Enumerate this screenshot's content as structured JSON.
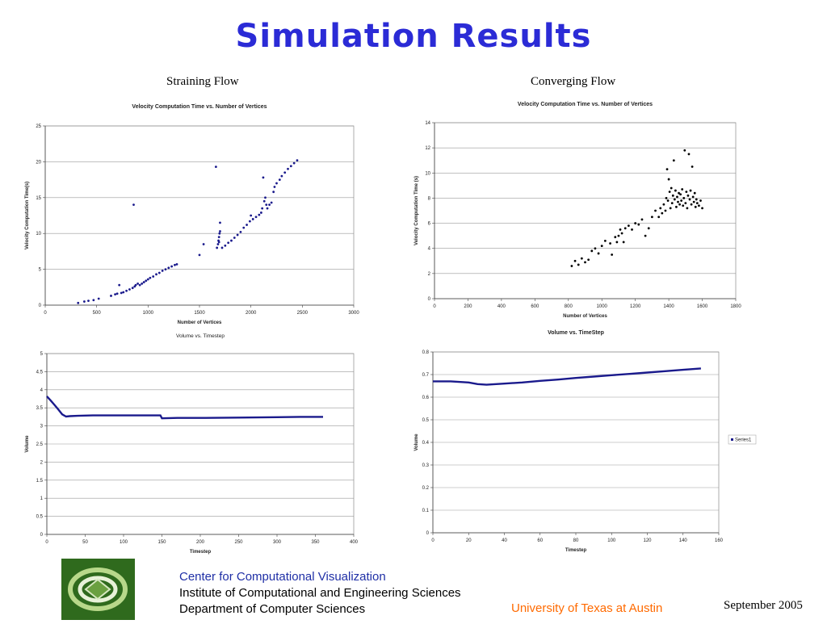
{
  "slide": {
    "title": "Simulation Results",
    "left_column_label": "Straining Flow",
    "right_column_label": "Converging Flow"
  },
  "footer": {
    "line1": "Center for Computational Visualization",
    "line2": "Institute of Computational and Engineering Sciences",
    "line3": "Department of Computer Sciences",
    "university": "University of Texas at Austin",
    "date": "September  2005",
    "colors": {
      "line1": "#1f2fa6",
      "university": "#ff6a00",
      "logo_bg": "#2f6a1d"
    }
  },
  "chart_data": [
    {
      "id": "straining-velocity",
      "type": "scatter",
      "title": "Velocity Computation Time vs. Number of Vertices",
      "xlabel": "Number of Vertices",
      "ylabel": "Velocity Computation Time(s)",
      "xlim": [
        0,
        3000
      ],
      "ylim": [
        0,
        25
      ],
      "xticks": [
        0,
        500,
        1000,
        1500,
        2000,
        2500,
        3000
      ],
      "yticks": [
        0,
        5,
        10,
        15,
        20,
        25
      ],
      "grid": true,
      "color": "#1a1a8c",
      "points": [
        [
          320,
          0.3
        ],
        [
          380,
          0.5
        ],
        [
          420,
          0.6
        ],
        [
          470,
          0.7
        ],
        [
          520,
          0.9
        ],
        [
          640,
          1.3
        ],
        [
          680,
          1.5
        ],
        [
          700,
          1.6
        ],
        [
          720,
          2.8
        ],
        [
          740,
          1.7
        ],
        [
          760,
          1.8
        ],
        [
          790,
          2.0
        ],
        [
          820,
          2.2
        ],
        [
          850,
          2.4
        ],
        [
          870,
          2.6
        ],
        [
          880,
          2.8
        ],
        [
          900,
          3.0
        ],
        [
          920,
          2.8
        ],
        [
          940,
          3.0
        ],
        [
          960,
          3.2
        ],
        [
          980,
          3.4
        ],
        [
          1000,
          3.6
        ],
        [
          1020,
          3.8
        ],
        [
          1050,
          4.0
        ],
        [
          1080,
          4.3
        ],
        [
          1110,
          4.5
        ],
        [
          1140,
          4.8
        ],
        [
          1170,
          5.0
        ],
        [
          1200,
          5.2
        ],
        [
          1230,
          5.4
        ],
        [
          1260,
          5.6
        ],
        [
          1280,
          5.7
        ],
        [
          860,
          14.0
        ],
        [
          1500,
          7.0
        ],
        [
          1540,
          8.5
        ],
        [
          1660,
          19.3
        ],
        [
          1670,
          8.0
        ],
        [
          1680,
          8.5
        ],
        [
          1685,
          9.0
        ],
        [
          1690,
          9.5
        ],
        [
          1695,
          10.0
        ],
        [
          1700,
          11.5
        ],
        [
          1690,
          8.8
        ],
        [
          1700,
          10.3
        ],
        [
          1720,
          8.0
        ],
        [
          1750,
          8.3
        ],
        [
          1780,
          8.7
        ],
        [
          1810,
          9.0
        ],
        [
          1840,
          9.4
        ],
        [
          1870,
          9.8
        ],
        [
          1900,
          10.2
        ],
        [
          1930,
          10.8
        ],
        [
          1960,
          11.2
        ],
        [
          1990,
          11.7
        ],
        [
          2000,
          12.5
        ],
        [
          2020,
          12.0
        ],
        [
          2050,
          12.3
        ],
        [
          2080,
          12.6
        ],
        [
          2100,
          12.9
        ],
        [
          2110,
          13.5
        ],
        [
          2120,
          17.8
        ],
        [
          2130,
          14.5
        ],
        [
          2140,
          15.0
        ],
        [
          2150,
          14.0
        ],
        [
          2160,
          13.5
        ],
        [
          2180,
          14.0
        ],
        [
          2200,
          14.3
        ],
        [
          2220,
          15.8
        ],
        [
          2230,
          16.5
        ],
        [
          2250,
          17.0
        ],
        [
          2280,
          17.5
        ],
        [
          2300,
          18.0
        ],
        [
          2330,
          18.5
        ],
        [
          2360,
          19.0
        ],
        [
          2390,
          19.4
        ],
        [
          2420,
          19.8
        ],
        [
          2450,
          20.2
        ]
      ]
    },
    {
      "id": "converging-velocity",
      "type": "scatter",
      "title": "Velocity Computation Time vs. Number of Vertices",
      "xlabel": "Number of Vertices",
      "ylabel": "Velocity Computation Time (s)",
      "xlim": [
        0,
        1800
      ],
      "ylim": [
        0,
        14
      ],
      "xticks": [
        0,
        200,
        400,
        600,
        800,
        1000,
        1200,
        1400,
        1600,
        1800
      ],
      "yticks": [
        0,
        2,
        4,
        6,
        8,
        10,
        12,
        14
      ],
      "grid": true,
      "color": "#000000",
      "points": [
        [
          820,
          2.6
        ],
        [
          840,
          3.0
        ],
        [
          860,
          2.7
        ],
        [
          880,
          3.2
        ],
        [
          900,
          2.9
        ],
        [
          920,
          3.1
        ],
        [
          940,
          3.8
        ],
        [
          960,
          4.0
        ],
        [
          980,
          3.6
        ],
        [
          1000,
          4.2
        ],
        [
          1020,
          4.6
        ],
        [
          1050,
          4.4
        ],
        [
          1060,
          3.5
        ],
        [
          1080,
          4.9
        ],
        [
          1090,
          4.5
        ],
        [
          1100,
          5.0
        ],
        [
          1110,
          5.5
        ],
        [
          1120,
          5.2
        ],
        [
          1130,
          4.5
        ],
        [
          1140,
          5.6
        ],
        [
          1160,
          5.8
        ],
        [
          1180,
          5.5
        ],
        [
          1200,
          6.0
        ],
        [
          1220,
          5.9
        ],
        [
          1240,
          6.3
        ],
        [
          1260,
          5.0
        ],
        [
          1280,
          5.6
        ],
        [
          1300,
          6.5
        ],
        [
          1320,
          7.0
        ],
        [
          1340,
          6.5
        ],
        [
          1350,
          7.2
        ],
        [
          1360,
          6.8
        ],
        [
          1370,
          7.5
        ],
        [
          1380,
          7.0
        ],
        [
          1385,
          8.0
        ],
        [
          1390,
          10.3
        ],
        [
          1395,
          7.8
        ],
        [
          1400,
          9.5
        ],
        [
          1405,
          8.5
        ],
        [
          1410,
          7.2
        ],
        [
          1415,
          8.8
        ],
        [
          1420,
          7.6
        ],
        [
          1425,
          8.2
        ],
        [
          1430,
          11.0
        ],
        [
          1435,
          7.9
        ],
        [
          1440,
          8.6
        ],
        [
          1445,
          7.3
        ],
        [
          1450,
          8.1
        ],
        [
          1455,
          7.7
        ],
        [
          1460,
          8.4
        ],
        [
          1465,
          7.5
        ],
        [
          1470,
          8.3
        ],
        [
          1475,
          7.8
        ],
        [
          1480,
          8.7
        ],
        [
          1485,
          7.4
        ],
        [
          1490,
          8.0
        ],
        [
          1495,
          11.8
        ],
        [
          1500,
          7.6
        ],
        [
          1505,
          8.5
        ],
        [
          1510,
          7.2
        ],
        [
          1515,
          8.2
        ],
        [
          1520,
          11.5
        ],
        [
          1525,
          7.9
        ],
        [
          1530,
          8.6
        ],
        [
          1535,
          7.5
        ],
        [
          1540,
          10.5
        ],
        [
          1545,
          8.1
        ],
        [
          1550,
          7.7
        ],
        [
          1555,
          8.4
        ],
        [
          1560,
          7.3
        ],
        [
          1565,
          7.9
        ],
        [
          1570,
          7.6
        ],
        [
          1580,
          7.4
        ],
        [
          1590,
          7.8
        ],
        [
          1600,
          7.2
        ]
      ]
    },
    {
      "id": "straining-volume",
      "type": "line",
      "title": "Volume vs. Timestep",
      "xlabel": "Timestep",
      "ylabel": "Volume",
      "xlim": [
        0,
        400
      ],
      "ylim": [
        0,
        5
      ],
      "xticks": [
        0,
        50,
        100,
        150,
        200,
        250,
        300,
        350,
        400
      ],
      "yticks": [
        0,
        0.5,
        1,
        1.5,
        2,
        2.5,
        3,
        3.5,
        4,
        4.5,
        5
      ],
      "grid": true,
      "color": "#1a1a8c",
      "points": [
        [
          0,
          3.82
        ],
        [
          5,
          3.7
        ],
        [
          10,
          3.58
        ],
        [
          15,
          3.45
        ],
        [
          20,
          3.32
        ],
        [
          25,
          3.26
        ],
        [
          30,
          3.27
        ],
        [
          40,
          3.28
        ],
        [
          60,
          3.29
        ],
        [
          80,
          3.29
        ],
        [
          100,
          3.29
        ],
        [
          120,
          3.29
        ],
        [
          148,
          3.29
        ],
        [
          150,
          3.21
        ],
        [
          170,
          3.22
        ],
        [
          200,
          3.22
        ],
        [
          250,
          3.23
        ],
        [
          300,
          3.24
        ],
        [
          330,
          3.25
        ],
        [
          360,
          3.25
        ]
      ]
    },
    {
      "id": "converging-volume",
      "type": "line",
      "title": "Volume vs. TimeStep",
      "xlabel": "Timestep",
      "ylabel": "Volume",
      "xlim": [
        0,
        160
      ],
      "ylim": [
        0,
        0.8
      ],
      "xticks": [
        0,
        20,
        40,
        60,
        80,
        100,
        120,
        140,
        160
      ],
      "yticks": [
        0,
        0.1,
        0.2,
        0.3,
        0.4,
        0.5,
        0.6,
        0.7,
        0.8
      ],
      "grid": true,
      "legend": [
        "Series1"
      ],
      "legend_position": "right",
      "color": "#1a1a8c",
      "points": [
        [
          0,
          0.67
        ],
        [
          10,
          0.67
        ],
        [
          20,
          0.665
        ],
        [
          25,
          0.658
        ],
        [
          30,
          0.655
        ],
        [
          40,
          0.66
        ],
        [
          50,
          0.665
        ],
        [
          60,
          0.672
        ],
        [
          70,
          0.678
        ],
        [
          80,
          0.685
        ],
        [
          90,
          0.691
        ],
        [
          100,
          0.697
        ],
        [
          110,
          0.703
        ],
        [
          120,
          0.709
        ],
        [
          130,
          0.715
        ],
        [
          140,
          0.721
        ],
        [
          150,
          0.727
        ]
      ]
    }
  ]
}
